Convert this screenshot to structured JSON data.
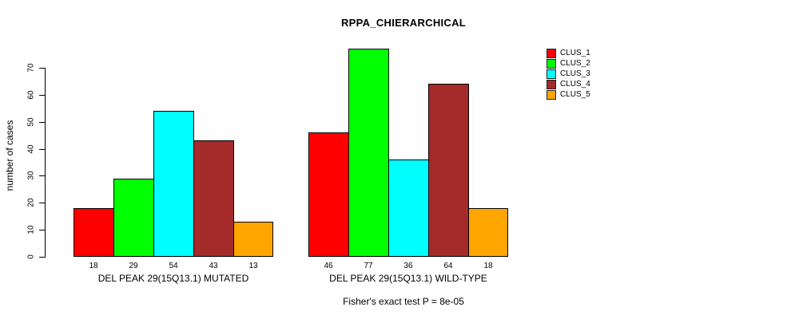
{
  "chart_data": {
    "type": "bar",
    "title": "RPPA_CHIERARCHICAL",
    "ylabel": "number of cases",
    "xlabel": "",
    "ylim": [
      0,
      77
    ],
    "yticks": [
      0,
      10,
      20,
      30,
      40,
      50,
      60,
      70
    ],
    "grid": false,
    "legend_position": "right",
    "annotation": "Fisher's exact test P = 8e-05",
    "bar_value_labels_shown": true,
    "series": [
      {
        "name": "CLUS_1",
        "color": "#FF0000"
      },
      {
        "name": "CLUS_2",
        "color": "#00FF00"
      },
      {
        "name": "CLUS_3",
        "color": "#00FFFF"
      },
      {
        "name": "CLUS_4",
        "color": "#A52A2A"
      },
      {
        "name": "CLUS_5",
        "color": "#FFA500"
      }
    ],
    "groups": [
      {
        "label": "DEL PEAK 29(15Q13.1) MUTATED",
        "values": [
          18,
          29,
          54,
          43,
          13
        ]
      },
      {
        "label": "DEL PEAK 29(15Q13.1) WILD-TYPE",
        "values": [
          46,
          77,
          36,
          64,
          18
        ]
      }
    ]
  }
}
